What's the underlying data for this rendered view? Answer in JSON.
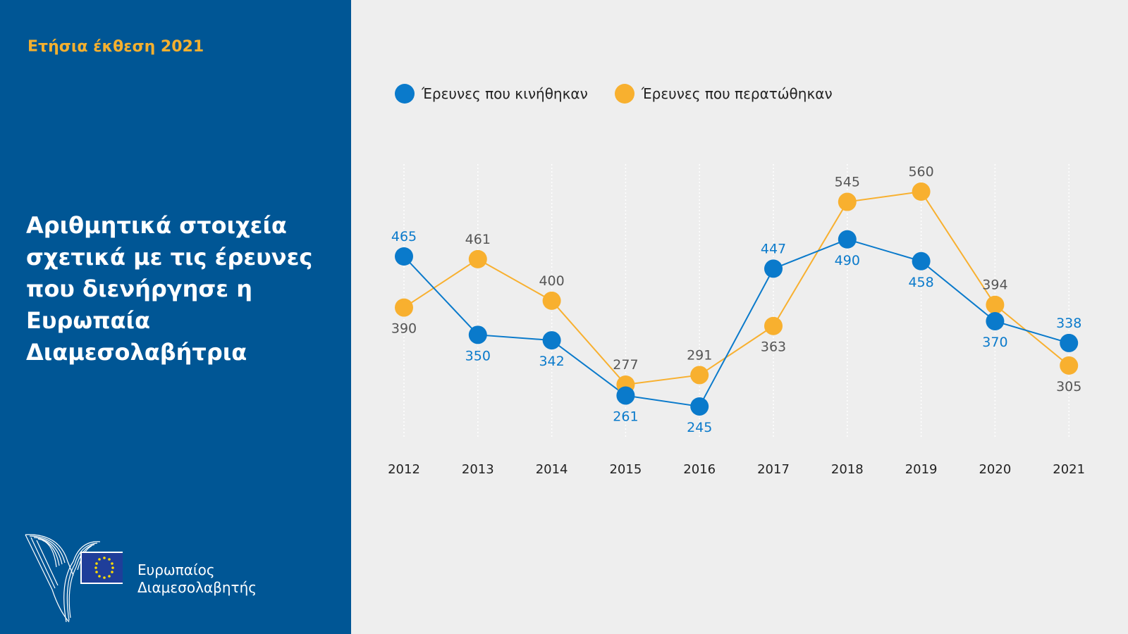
{
  "sidebar": {
    "report_label": "Ετήσια έκθεση 2021",
    "title": "Αριθμητικά στοιχεία σχετικά με τις έρευνες που διενήργησε η Ευρωπαία Διαμεσολαβήτρια",
    "logo_line1": "Ευρωπαίος",
    "logo_line2": "Διαμεσολαβητής"
  },
  "chart_data": {
    "type": "line",
    "title": "",
    "xlabel": "",
    "ylabel": "",
    "x": [
      "2012",
      "2013",
      "2014",
      "2015",
      "2016",
      "2017",
      "2018",
      "2019",
      "2020",
      "2021"
    ],
    "series": [
      {
        "name": "Έρευνες που κινήθηκαν",
        "color": "#0a7acb",
        "label_color": "#0a7acb",
        "values": [
          465,
          350,
          342,
          261,
          245,
          447,
          490,
          458,
          370,
          338
        ],
        "label_pos": [
          "above",
          "below",
          "below",
          "below",
          "below",
          "above",
          "below",
          "below",
          "below",
          "above"
        ]
      },
      {
        "name": "Έρευνες που περατώθηκαν",
        "color": "#f8b02f",
        "label_color": "#555555",
        "values": [
          390,
          461,
          400,
          277,
          291,
          363,
          545,
          560,
          394,
          305
        ],
        "label_pos": [
          "below",
          "above",
          "above",
          "above",
          "above",
          "below",
          "above",
          "above",
          "above",
          "below"
        ]
      }
    ],
    "grid": "vertical dotted",
    "legend": "top-left"
  }
}
